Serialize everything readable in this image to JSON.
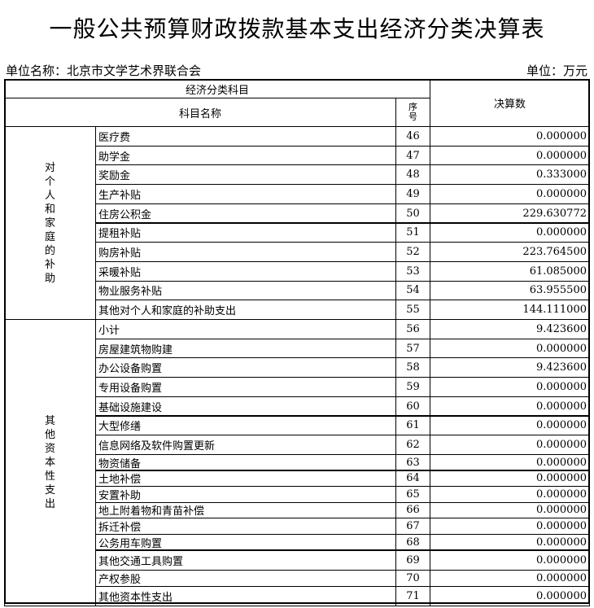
{
  "title": "一般公共预算财政拨款基本支出经济分类决算表",
  "unit_name": "单位名称：北京市文学艺术界联合会",
  "unit": "单位：万元",
  "header": {
    "group": "经济分类科目",
    "name": "科目名称",
    "seq_chars": [
      "序",
      "号"
    ],
    "amount": "决算数"
  },
  "groups": [
    {
      "label_chars": [
        "对",
        "个",
        "人",
        "和",
        "家",
        "庭",
        "的",
        "补",
        "助"
      ],
      "rows": [
        {
          "name": "医疗费",
          "seq": "46",
          "amount": "0.000000"
        },
        {
          "name": "助学金",
          "seq": "47",
          "amount": "0.000000"
        },
        {
          "name": "奖励金",
          "seq": "48",
          "amount": "0.333000"
        },
        {
          "name": "生产补贴",
          "seq": "49",
          "amount": "0.000000"
        },
        {
          "name": "住房公积金",
          "seq": "50",
          "amount": "229.630772"
        },
        {
          "name": "提租补贴",
          "seq": "51",
          "amount": "0.000000"
        },
        {
          "name": "购房补贴",
          "seq": "52",
          "amount": "223.764500"
        },
        {
          "name": "采暖补贴",
          "seq": "53",
          "amount": "61.085000"
        },
        {
          "name": "物业服务补贴",
          "seq": "54",
          "amount": "63.955500"
        },
        {
          "name": "其他对个人和家庭的补助支出",
          "seq": "55",
          "amount": "144.111000"
        }
      ]
    },
    {
      "label_chars": [
        "其",
        "他",
        "资",
        "本",
        "性",
        "支",
        "出"
      ],
      "rows": [
        {
          "name": "小计",
          "seq": "56",
          "amount": "9.423600"
        },
        {
          "name": "房屋建筑物购建",
          "seq": "57",
          "amount": "0.000000"
        },
        {
          "name": "办公设备购置",
          "seq": "58",
          "amount": "9.423600"
        },
        {
          "name": "专用设备购置",
          "seq": "59",
          "amount": "0.000000"
        },
        {
          "name": "基础设施建设",
          "seq": "60",
          "amount": "0.000000"
        },
        {
          "name": "大型修缮",
          "seq": "61",
          "amount": "0.000000"
        },
        {
          "name": "信息网络及软件购置更新",
          "seq": "62",
          "amount": "0.000000"
        },
        {
          "name": "物资储备",
          "seq": "63",
          "amount": "0.000000"
        },
        {
          "name": "土地补偿",
          "seq": "64",
          "amount": "0.000000"
        },
        {
          "name": "安置补助",
          "seq": "65",
          "amount": "0.000000"
        },
        {
          "name": "地上附着物和青苗补偿",
          "seq": "66",
          "amount": "0.000000"
        },
        {
          "name": "拆迁补偿",
          "seq": "67",
          "amount": "0.000000"
        },
        {
          "name": "公务用车购置",
          "seq": "68",
          "amount": "0.000000"
        },
        {
          "name": "其他交通工具购置",
          "seq": "69",
          "amount": "0.000000"
        },
        {
          "name": "产权参股",
          "seq": "70",
          "amount": "0.000000"
        },
        {
          "name": "其他资本性支出",
          "seq": "71",
          "amount": "0.000000"
        }
      ]
    }
  ]
}
